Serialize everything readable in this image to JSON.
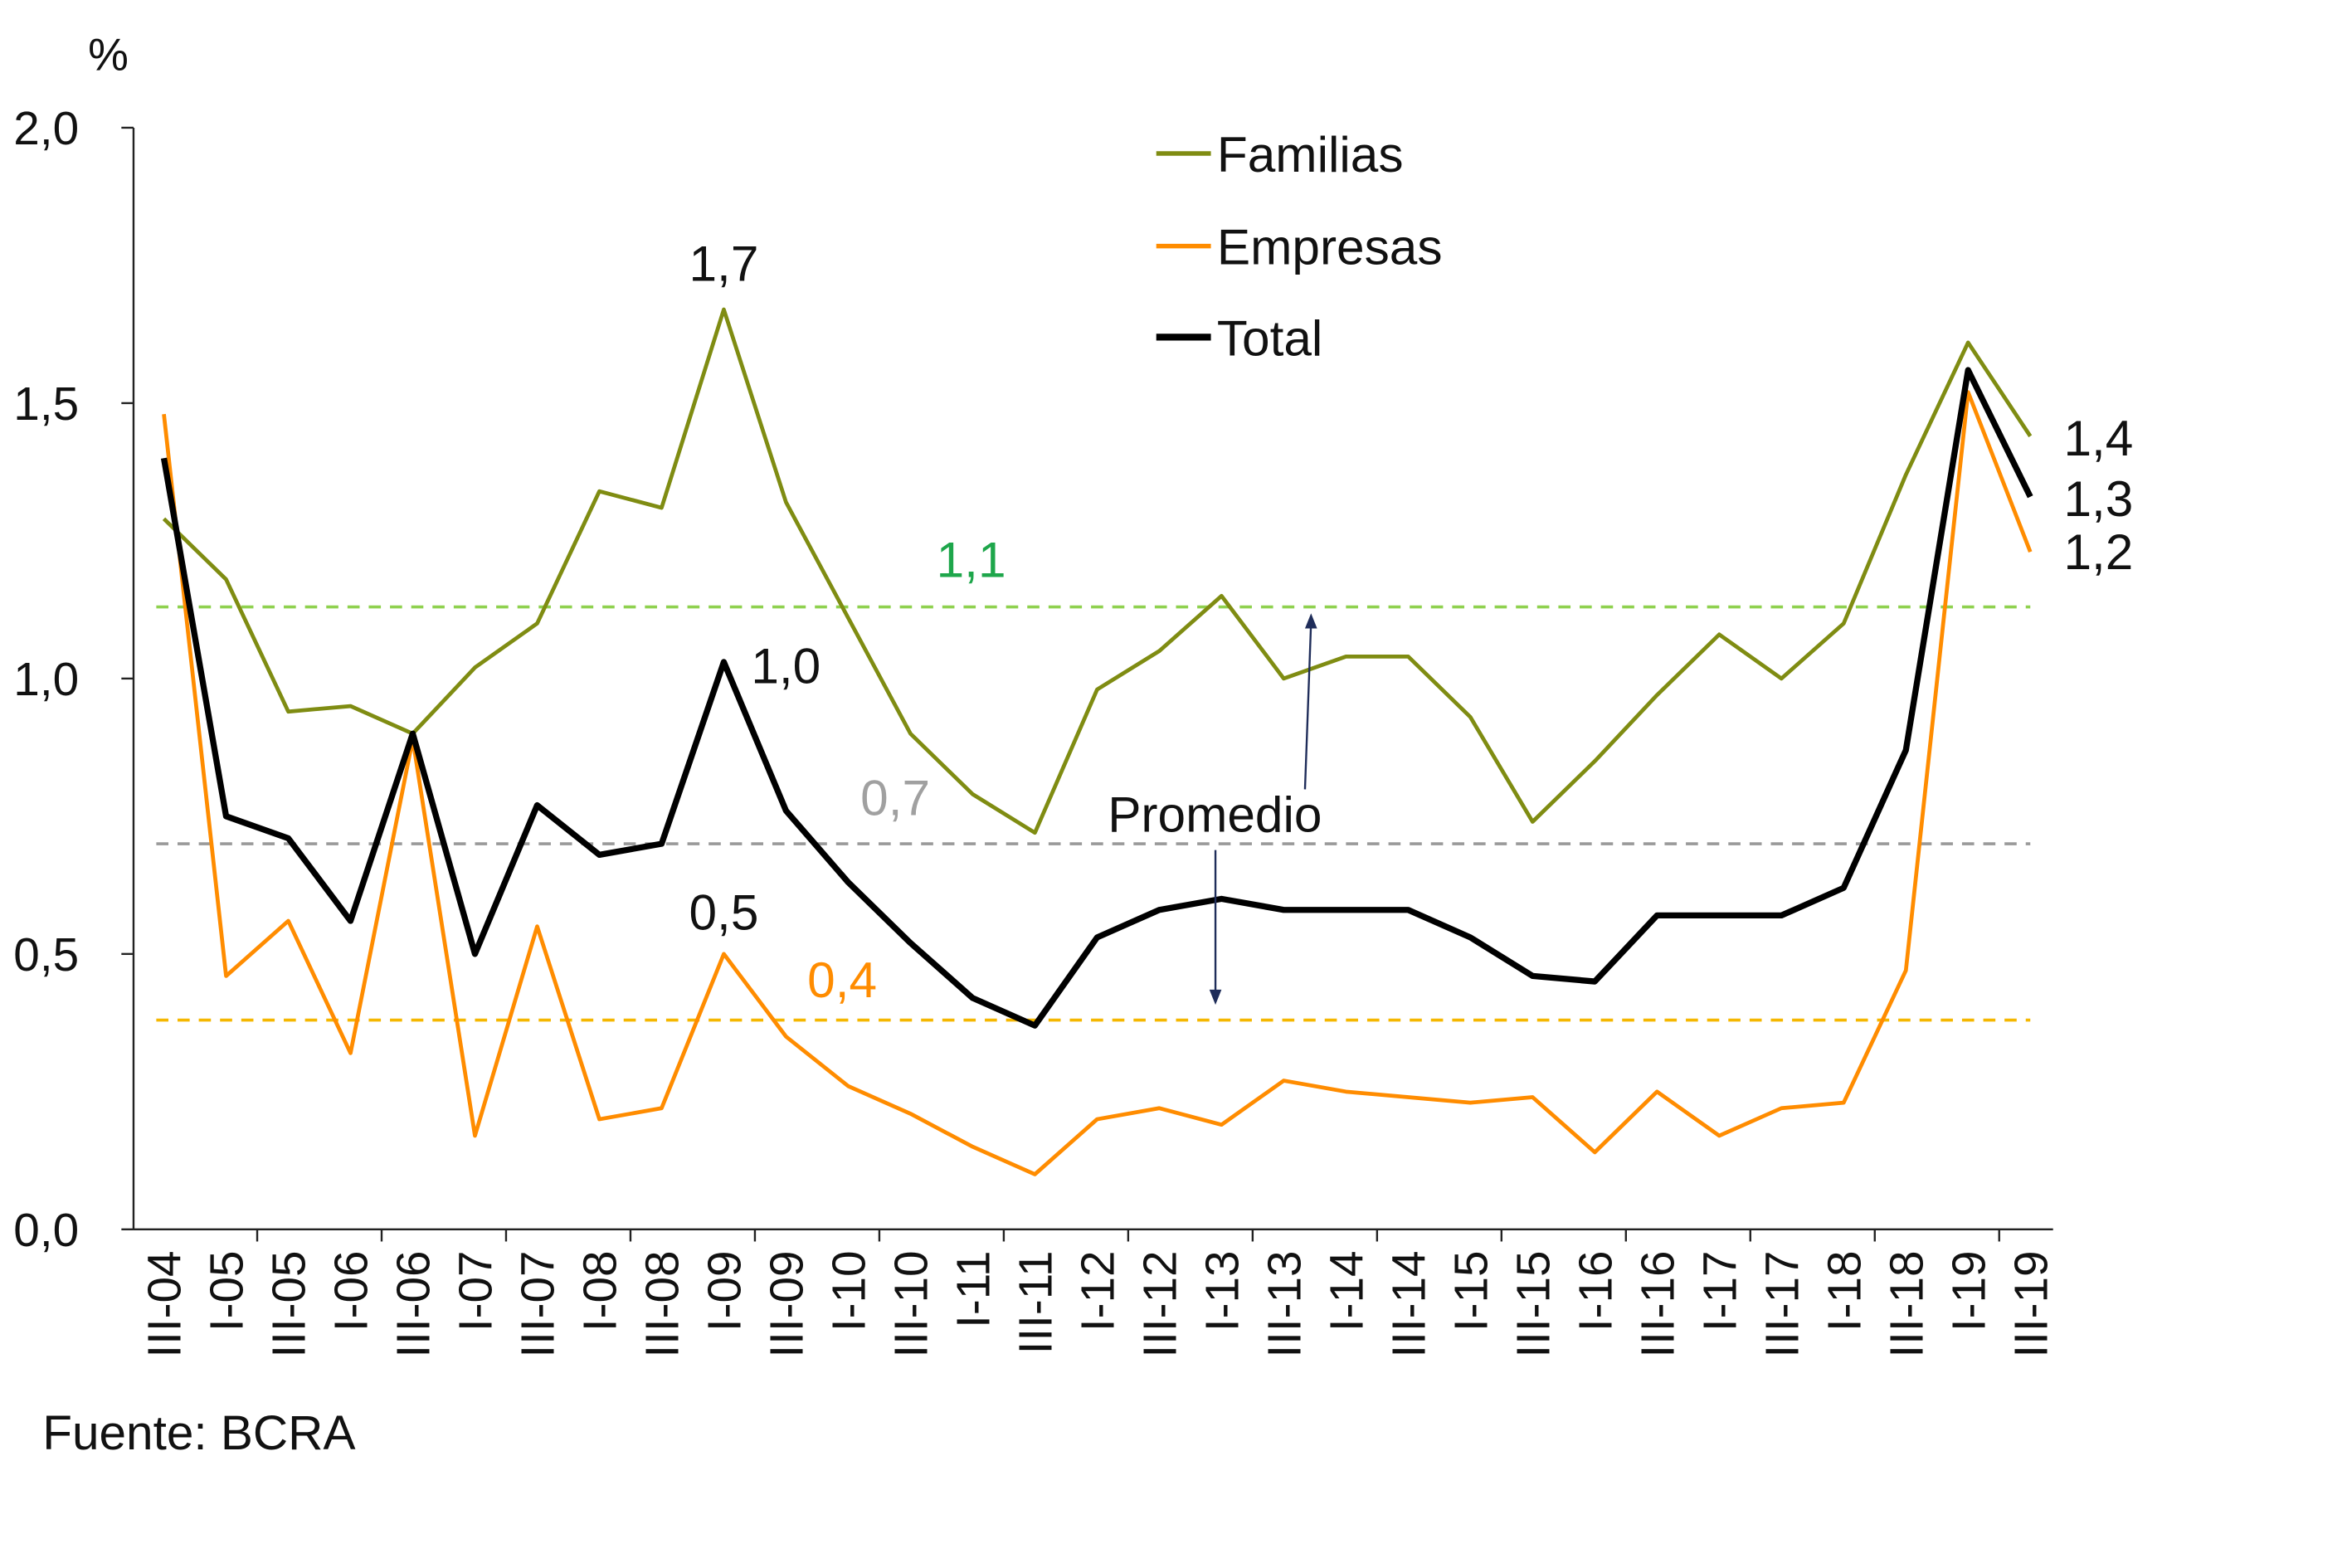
{
  "chart_data": {
    "type": "line",
    "ylabel": "%",
    "ylim": [
      0,
      2.0
    ],
    "yticks": [
      "0,0",
      "0,5",
      "1,0",
      "1,5",
      "2,0"
    ],
    "ytick_values": [
      0,
      0.5,
      1.0,
      1.5,
      2.0
    ],
    "categories": [
      "III-04",
      "I-05",
      "III-05",
      "I-06",
      "III-06",
      "I-07",
      "III-07",
      "I-08",
      "III-08",
      "I-09",
      "III-09",
      "I-10",
      "III-10",
      "I-11",
      "III-11",
      "I-12",
      "III-12",
      "I-13",
      "III-13",
      "I-14",
      "III-14",
      "I-15",
      "III-15",
      "I-16",
      "III-16",
      "I-17",
      "III-17",
      "I-18",
      "III-18",
      "I-19",
      "III-19"
    ],
    "legend_position": "top-center",
    "grid": false,
    "series": [
      {
        "name": "Familias",
        "color": "#7f8c12",
        "values": [
          1.29,
          1.18,
          0.94,
          0.95,
          0.9,
          1.02,
          1.1,
          1.34,
          1.31,
          1.67,
          1.32,
          1.11,
          0.9,
          0.79,
          0.72,
          0.98,
          1.05,
          1.15,
          1.0,
          1.04,
          1.04,
          0.93,
          0.74,
          0.85,
          0.97,
          1.08,
          1.0,
          1.1,
          1.37,
          1.61,
          1.44
        ]
      },
      {
        "name": "Empresas",
        "color": "#ff8c00",
        "values": [
          1.48,
          0.46,
          0.56,
          0.32,
          0.89,
          0.17,
          0.55,
          0.2,
          0.22,
          0.5,
          0.35,
          0.26,
          0.21,
          0.15,
          0.1,
          0.2,
          0.22,
          0.19,
          0.27,
          0.25,
          0.24,
          0.23,
          0.24,
          0.14,
          0.25,
          0.17,
          0.22,
          0.23,
          0.47,
          1.52,
          1.23
        ]
      },
      {
        "name": "Total",
        "color": "#000000",
        "values": [
          1.4,
          0.75,
          0.71,
          0.56,
          0.9,
          0.5,
          0.77,
          0.68,
          0.7,
          1.03,
          0.76,
          0.63,
          0.52,
          0.42,
          0.37,
          0.53,
          0.58,
          0.6,
          0.58,
          0.58,
          0.58,
          0.53,
          0.46,
          0.45,
          0.57,
          0.57,
          0.57,
          0.62,
          0.87,
          1.56,
          1.33
        ]
      }
    ],
    "averages": [
      {
        "series": "Familias",
        "value": 1.13,
        "label": "1,1",
        "line_color": "#8fd14f",
        "label_color": "#1ea64b"
      },
      {
        "series": "Total",
        "value": 0.7,
        "label": "0,7",
        "line_color": "#9a9a9a",
        "label_color": "#a0a0a0"
      },
      {
        "series": "Empresas",
        "value": 0.38,
        "label": "0,4",
        "line_color": "#f5b700",
        "label_color": "#ff8c00"
      }
    ],
    "annotations": [
      {
        "text": "1,7",
        "category": "I-09",
        "value": 1.67
      },
      {
        "text": "1,0",
        "category": "I-09",
        "value": 1.03
      },
      {
        "text": "0,5",
        "category": "I-09",
        "value": 0.5
      },
      {
        "text": "1,4",
        "category": "III-19",
        "value": 1.44
      },
      {
        "text": "1,3",
        "category": "III-19",
        "value": 1.33
      },
      {
        "text": "1,2",
        "category": "III-19",
        "value": 1.23
      }
    ],
    "average_annotation": "Promedio"
  },
  "source": "Fuente: BCRA"
}
